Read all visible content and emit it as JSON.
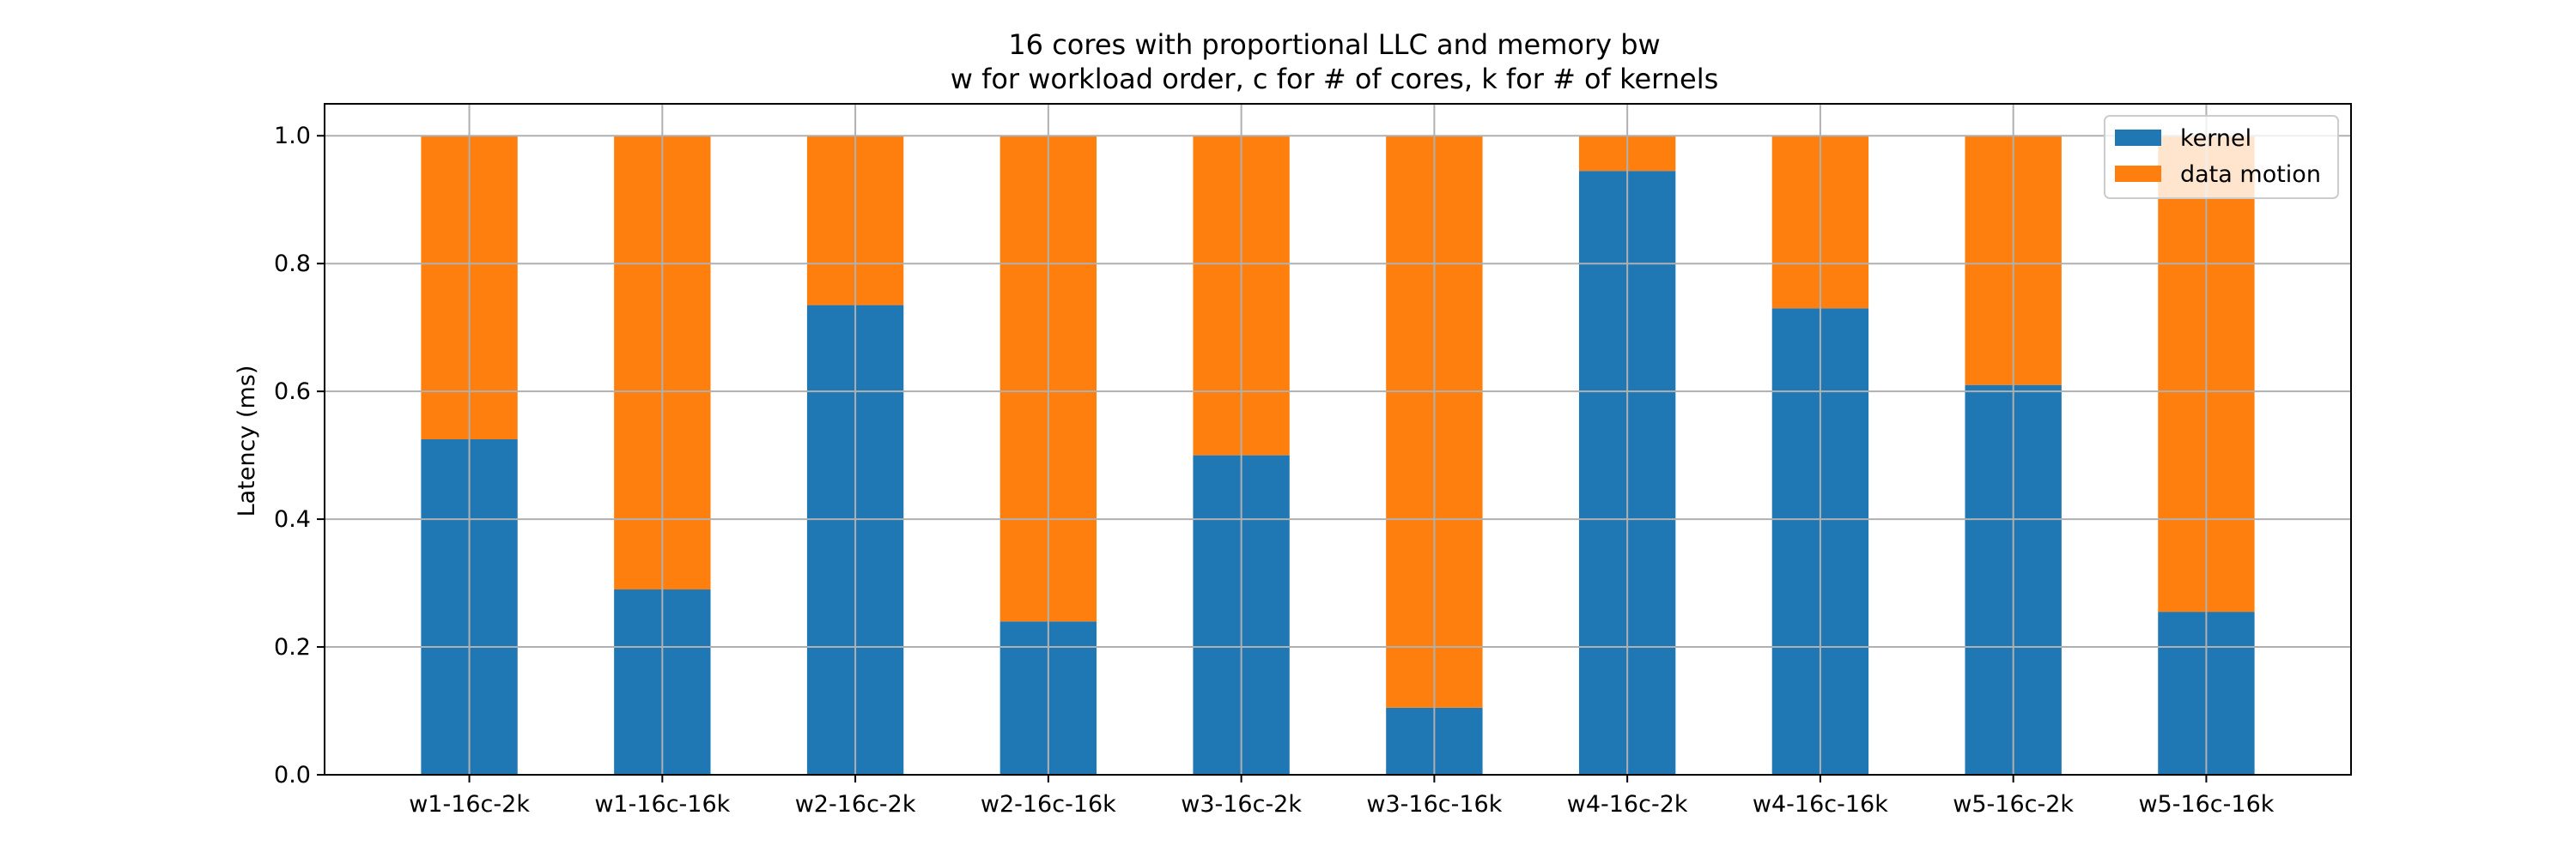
{
  "chart_data": {
    "type": "bar",
    "stacked": true,
    "title": "16 cores with proportional LLC and memory bw",
    "subtitle": "w for workload order, c for # of cores, k for # of kernels",
    "xlabel": "",
    "ylabel": "Latency (ms)",
    "ylim": [
      0,
      1.05
    ],
    "yticks": [
      0.0,
      0.2,
      0.4,
      0.6,
      0.8,
      1.0
    ],
    "ytick_labels": [
      "0.0",
      "0.2",
      "0.4",
      "0.6",
      "0.8",
      "1.0"
    ],
    "grid": true,
    "legend_position": "top-right",
    "categories": [
      "w1-16c-2k",
      "w1-16c-16k",
      "w2-16c-2k",
      "w2-16c-16k",
      "w3-16c-2k",
      "w3-16c-16k",
      "w4-16c-2k",
      "w4-16c-16k",
      "w5-16c-2k",
      "w5-16c-16k"
    ],
    "series": [
      {
        "name": "kernel",
        "color": "#1f77b4",
        "values": [
          0.525,
          0.29,
          0.735,
          0.24,
          0.5,
          0.105,
          0.945,
          0.73,
          0.61,
          0.255
        ]
      },
      {
        "name": "data motion",
        "color": "#ff7f0e",
        "values": [
          0.475,
          0.71,
          0.265,
          0.76,
          0.5,
          0.895,
          0.055,
          0.27,
          0.39,
          0.745
        ]
      }
    ]
  }
}
